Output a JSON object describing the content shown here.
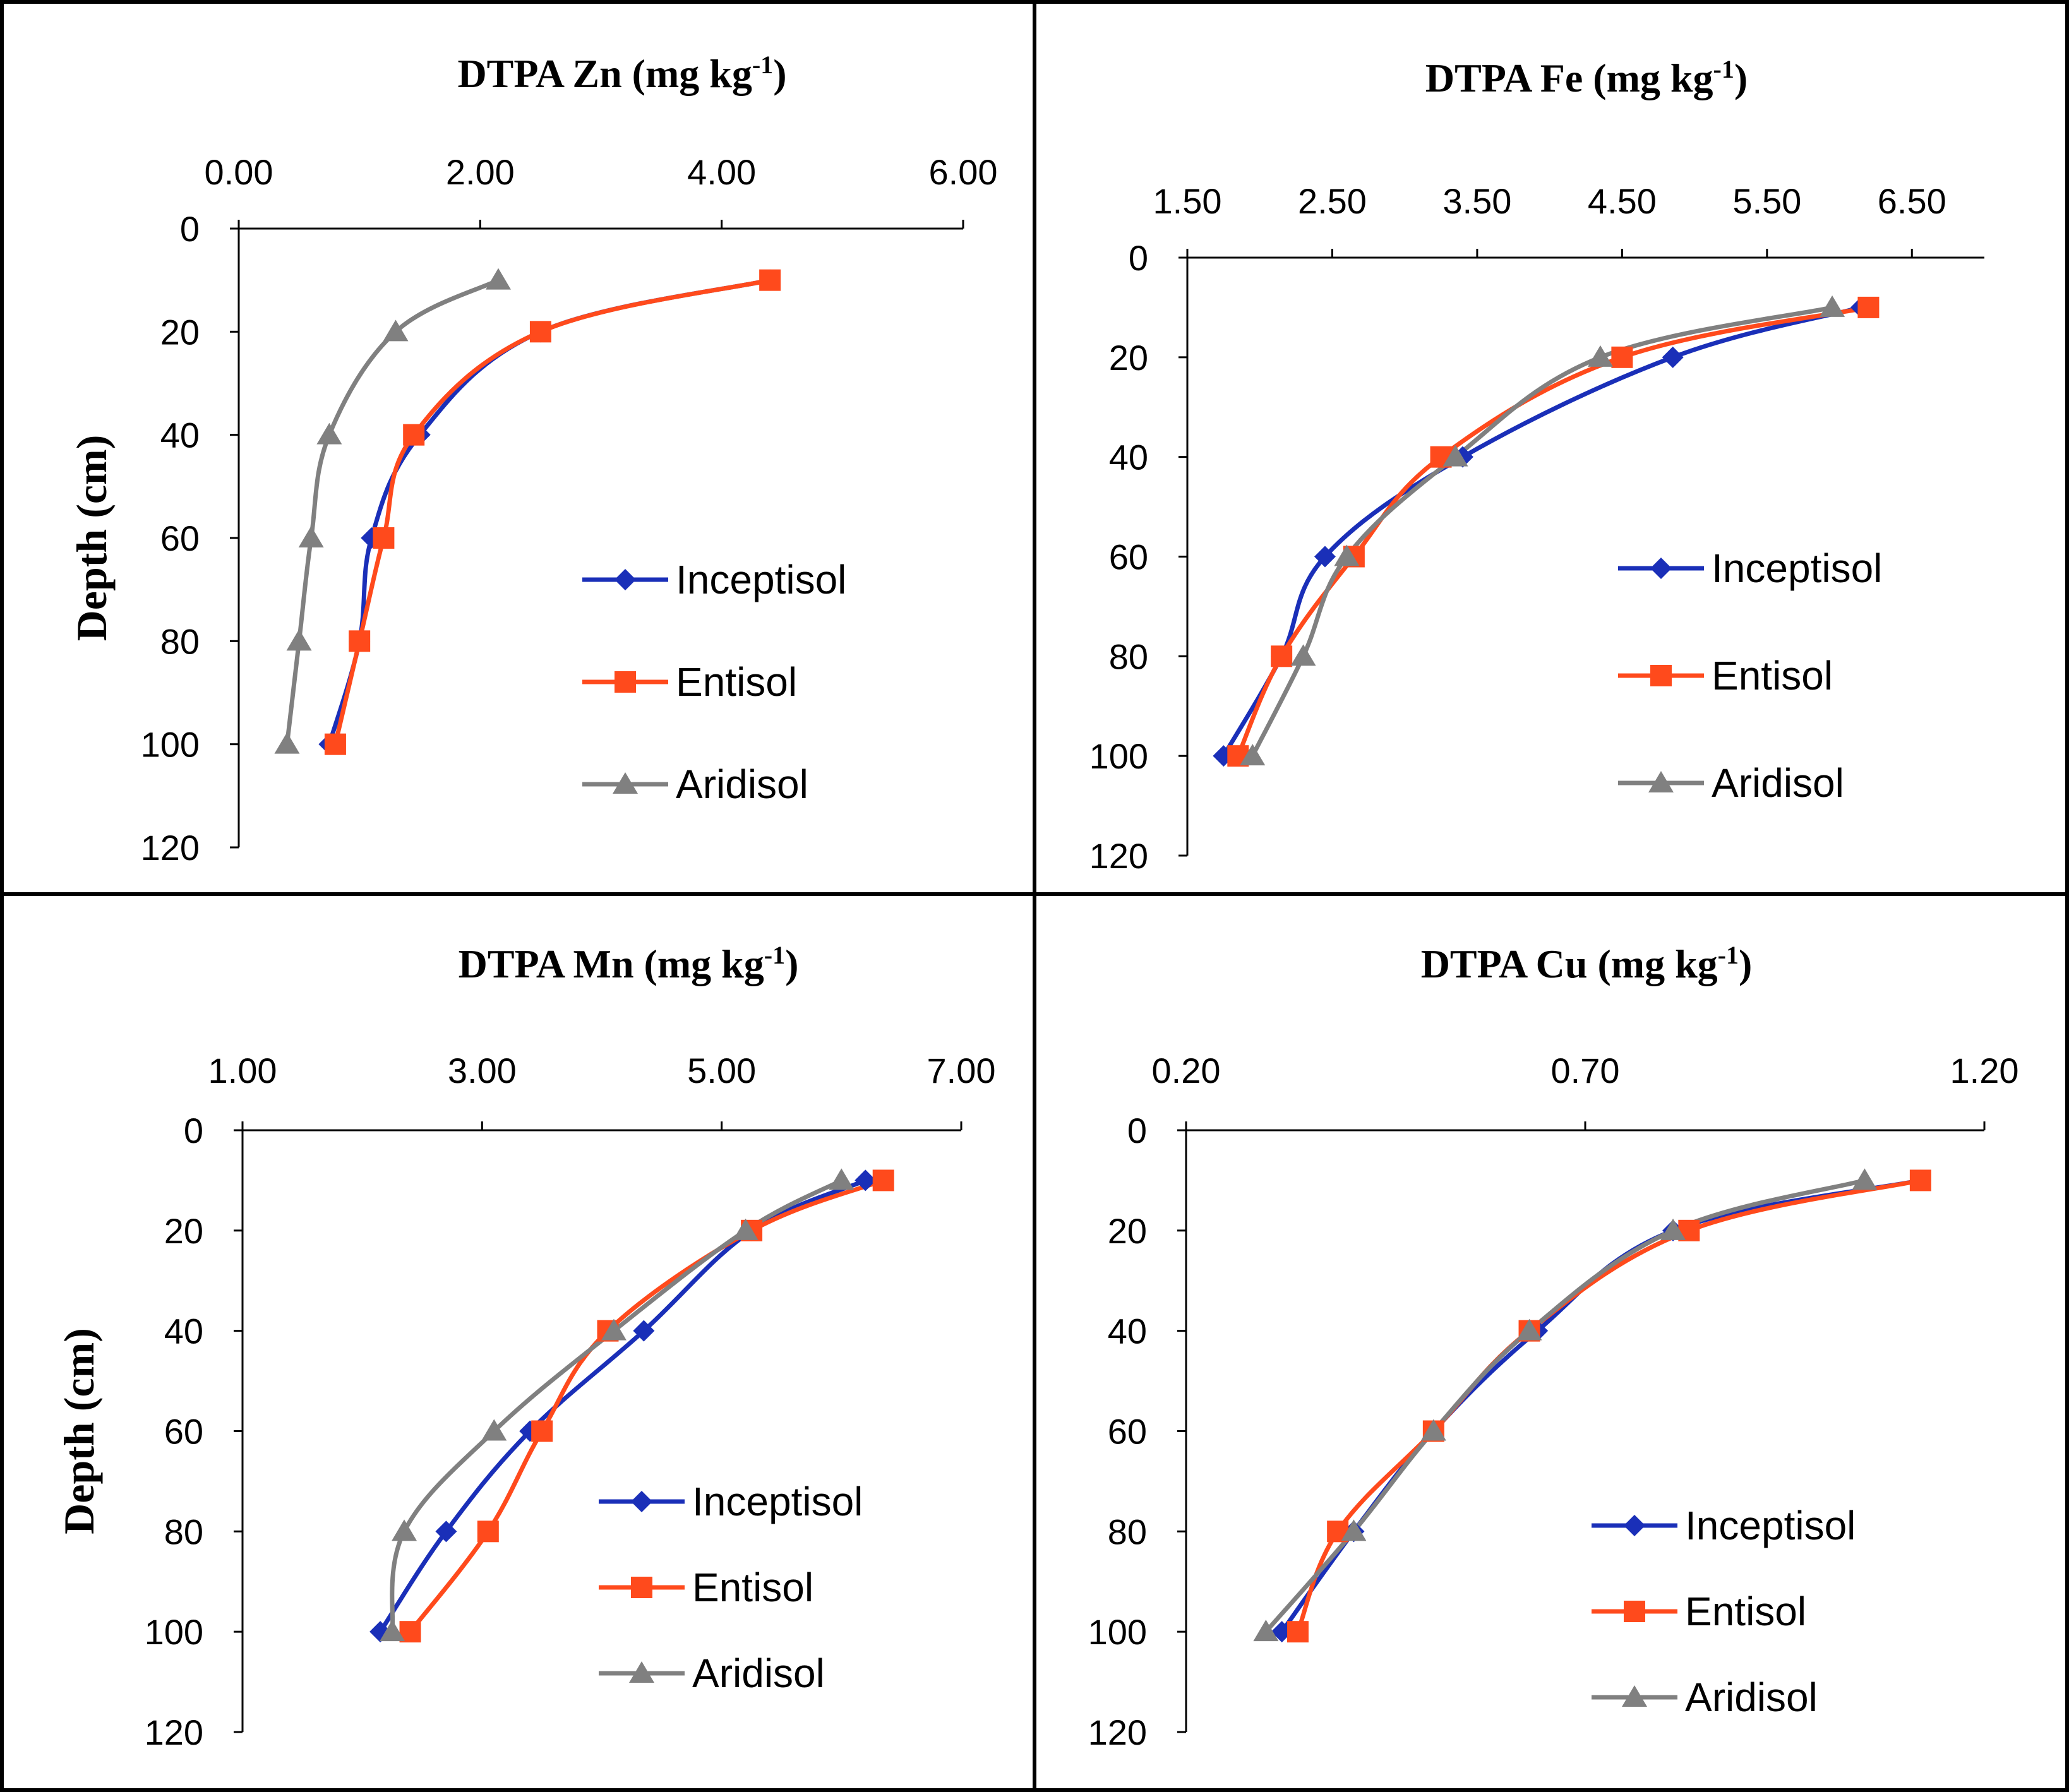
{
  "series_styles": [
    {
      "name": "Inceptisol",
      "color": "#1a2fb8",
      "marker": "diamond"
    },
    {
      "name": "Entisol",
      "color": "#ff4a1c",
      "marker": "square"
    },
    {
      "name": "Aridisol",
      "color": "#808080",
      "marker": "triangle"
    }
  ],
  "chart_data": [
    {
      "type": "line",
      "title": "DTPA Zn (mg kg",
      "title_sup": "-1",
      "title_close": ")",
      "ylabel": "Depth (cm)",
      "xlabel": "",
      "xlim": [
        0,
        6
      ],
      "xticks": [
        0,
        2,
        4,
        6
      ],
      "xtick_labels": [
        "0.00",
        "2.00",
        "4.00",
        "6.00"
      ],
      "ylim": [
        0,
        120
      ],
      "yticks": [
        0,
        20,
        40,
        60,
        80,
        100,
        120
      ],
      "ytick_labels": [
        "0",
        "20",
        "40",
        "60",
        "80",
        "100",
        "120"
      ],
      "y_inverted": true,
      "legend": [
        "Inceptisol",
        "Entisol",
        "Aridisol"
      ],
      "legend_position": "lower-right",
      "depth": [
        10,
        20,
        40,
        60,
        80,
        100
      ],
      "series": [
        {
          "name": "Inceptisol",
          "x": [
            4.4,
            2.5,
            1.5,
            1.1,
            1.0,
            0.75
          ]
        },
        {
          "name": "Entisol",
          "x": [
            4.4,
            2.5,
            1.45,
            1.2,
            1.0,
            0.8
          ]
        },
        {
          "name": "Aridisol",
          "x": [
            2.15,
            1.3,
            0.75,
            0.6,
            0.5,
            0.4
          ]
        }
      ]
    },
    {
      "type": "line",
      "title": "DTPA Fe (mg kg",
      "title_sup": "-1",
      "title_close": ")",
      "ylabel": "",
      "xlabel": "",
      "xlim": [
        1.5,
        7.0
      ],
      "xticks": [
        1.5,
        2.5,
        3.5,
        4.5,
        5.5,
        6.5
      ],
      "xtick_labels": [
        "1.50",
        "2.50",
        "3.50",
        "4.50",
        "5.50",
        "6.50"
      ],
      "ylim": [
        0,
        120
      ],
      "yticks": [
        0,
        20,
        40,
        60,
        80,
        100,
        120
      ],
      "ytick_labels": [
        "0",
        "20",
        "40",
        "60",
        "80",
        "100",
        "120"
      ],
      "y_inverted": true,
      "legend": [
        "Inceptisol",
        "Entisol",
        "Aridisol"
      ],
      "legend_position": "lower-right",
      "depth": [
        10,
        20,
        40,
        60,
        80,
        100
      ],
      "series": [
        {
          "name": "Inceptisol",
          "x": [
            6.15,
            4.85,
            3.4,
            2.45,
            2.15,
            1.75
          ]
        },
        {
          "name": "Entisol",
          "x": [
            6.2,
            4.5,
            3.25,
            2.65,
            2.15,
            1.85
          ]
        },
        {
          "name": "Aridisol",
          "x": [
            5.95,
            4.35,
            3.35,
            2.6,
            2.3,
            1.95
          ]
        }
      ]
    },
    {
      "type": "line",
      "title": "DTPA Mn (mg kg",
      "title_sup": "-1",
      "title_close": ")",
      "ylabel": "Depth (cm)",
      "xlabel": "",
      "xlim": [
        1,
        7
      ],
      "xticks": [
        1,
        3,
        5,
        7
      ],
      "xtick_labels": [
        "1.00",
        "3.00",
        "5.00",
        "7.00"
      ],
      "ylim": [
        0,
        120
      ],
      "yticks": [
        0,
        20,
        40,
        60,
        80,
        100,
        120
      ],
      "ytick_labels": [
        "0",
        "20",
        "40",
        "60",
        "80",
        "100",
        "120"
      ],
      "y_inverted": true,
      "legend": [
        "Inceptisol",
        "Entisol",
        "Aridisol"
      ],
      "legend_position": "lower-right",
      "depth": [
        10,
        20,
        40,
        60,
        80,
        100
      ],
      "series": [
        {
          "name": "Inceptisol",
          "x": [
            6.2,
            5.25,
            4.35,
            3.4,
            2.7,
            2.15
          ]
        },
        {
          "name": "Entisol",
          "x": [
            6.35,
            5.25,
            4.05,
            3.5,
            3.05,
            2.4
          ]
        },
        {
          "name": "Aridisol",
          "x": [
            6.0,
            5.2,
            4.1,
            3.1,
            2.35,
            2.25
          ]
        }
      ]
    },
    {
      "type": "line",
      "title": "DTPA Cu (mg kg",
      "title_sup": "-1",
      "title_close": ")",
      "ylabel": "",
      "xlabel": "",
      "xlim": [
        0.2,
        1.2
      ],
      "xticks": [
        0.2,
        0.7,
        1.2
      ],
      "xtick_labels": [
        "0.20",
        "0.70",
        "1.20"
      ],
      "ylim": [
        0,
        120
      ],
      "yticks": [
        0,
        20,
        40,
        60,
        80,
        100,
        120
      ],
      "ytick_labels": [
        "0",
        "20",
        "40",
        "60",
        "80",
        "100",
        "120"
      ],
      "y_inverted": true,
      "legend": [
        "Inceptisol",
        "Entisol",
        "Aridisol"
      ],
      "legend_position": "lower-right",
      "depth": [
        10,
        20,
        40,
        60,
        80,
        100
      ],
      "series": [
        {
          "name": "Inceptisol",
          "x": [
            1.12,
            0.81,
            0.64,
            0.51,
            0.41,
            0.32
          ]
        },
        {
          "name": "Entisol",
          "x": [
            1.12,
            0.83,
            0.63,
            0.51,
            0.39,
            0.34
          ]
        },
        {
          "name": "Aridisol",
          "x": [
            1.05,
            0.81,
            0.63,
            0.51,
            0.41,
            0.3
          ]
        }
      ]
    }
  ]
}
